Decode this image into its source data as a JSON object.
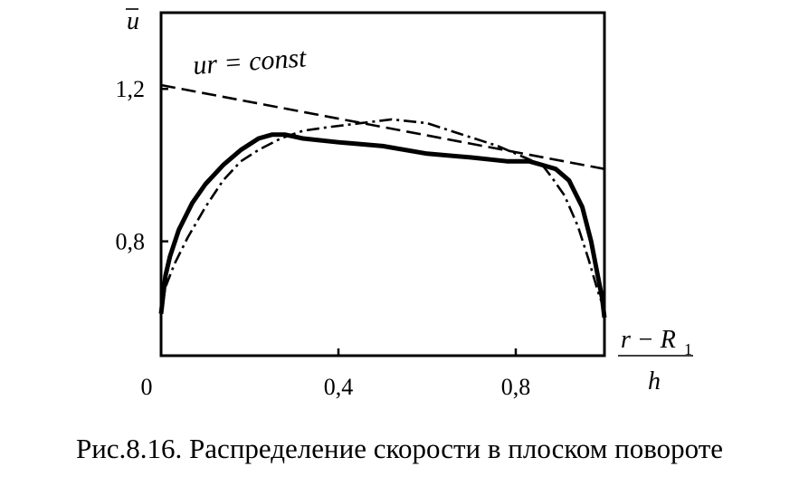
{
  "chart_data": {
    "type": "line",
    "xlim": [
      0,
      1
    ],
    "ylim": [
      0.5,
      1.4
    ],
    "x_ticks": [
      {
        "value": 0,
        "label": "0"
      },
      {
        "value": 0.4,
        "label": "0,4"
      },
      {
        "value": 0.8,
        "label": "0,8"
      }
    ],
    "y_ticks": [
      {
        "value": 0.8,
        "label": "0,8"
      },
      {
        "value": 1.2,
        "label": "1,2"
      }
    ],
    "ylabel": "u",
    "xlabel": {
      "numerator": "r − R",
      "subscript": "1",
      "denominator": "h"
    },
    "annotation": "ur = const",
    "grid": false,
    "series": [
      {
        "style": "solid",
        "x": [
          0,
          0.005,
          0.01,
          0.02,
          0.04,
          0.07,
          0.1,
          0.14,
          0.18,
          0.22,
          0.25,
          0.28,
          0.32,
          0.4,
          0.5,
          0.6,
          0.7,
          0.78,
          0.83,
          0.86,
          0.89,
          0.92,
          0.95,
          0.97,
          0.985,
          0.995,
          1.0
        ],
        "y": [
          0.61,
          0.66,
          0.71,
          0.76,
          0.83,
          0.9,
          0.95,
          1.0,
          1.04,
          1.07,
          1.08,
          1.08,
          1.07,
          1.06,
          1.05,
          1.03,
          1.02,
          1.01,
          1.01,
          1.0,
          0.99,
          0.96,
          0.89,
          0.8,
          0.71,
          0.65,
          0.6
        ]
      },
      {
        "style": "dash-dot",
        "x": [
          0,
          0.01,
          0.03,
          0.06,
          0.1,
          0.14,
          0.18,
          0.22,
          0.27,
          0.32,
          0.38,
          0.45,
          0.52,
          0.6,
          0.68,
          0.76,
          0.82,
          0.86,
          0.88,
          0.91,
          0.94,
          0.965,
          0.985,
          1.0
        ],
        "y": [
          0.62,
          0.68,
          0.74,
          0.81,
          0.89,
          0.96,
          1.01,
          1.04,
          1.07,
          1.09,
          1.1,
          1.11,
          1.12,
          1.11,
          1.08,
          1.05,
          1.02,
          1.0,
          0.97,
          0.92,
          0.84,
          0.75,
          0.67,
          0.62
        ]
      },
      {
        "style": "dashed",
        "x": [
          0,
          1
        ],
        "y": [
          1.21,
          0.99
        ]
      }
    ]
  },
  "caption": "Рис.8.16. Распределение скорости в плоском повороте"
}
